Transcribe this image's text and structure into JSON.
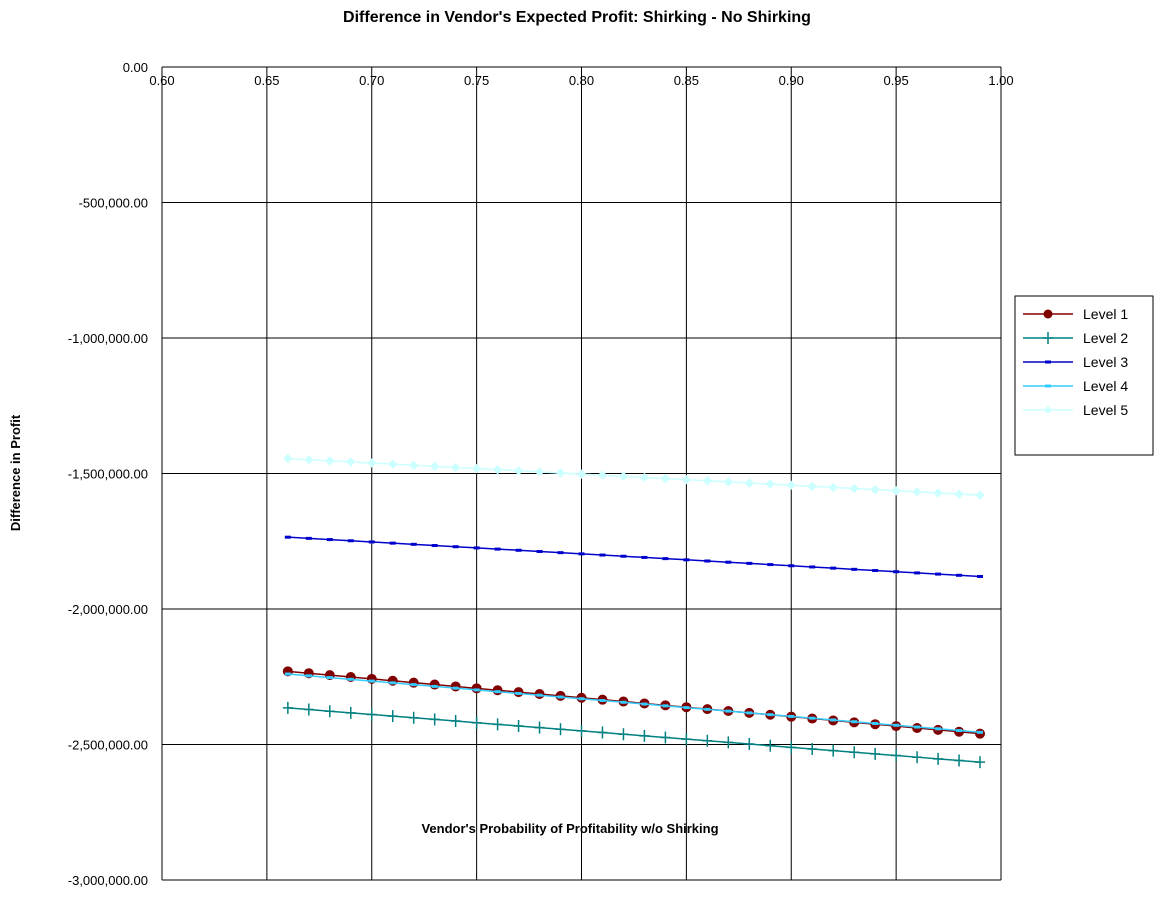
{
  "chart_data": {
    "type": "line",
    "title": "Difference in Vendor's Expected Profit:  Shirking - No Shirking",
    "xlabel": "Vendor's Probability of Profitability w/o Shirking",
    "ylabel": "Difference in Profit",
    "xlim": [
      0.6,
      1.0
    ],
    "ylim": [
      -3000000,
      0
    ],
    "x_tick_labels": [
      "0.60",
      "0.65",
      "0.70",
      "0.75",
      "0.80",
      "0.85",
      "0.90",
      "0.95",
      "1.00"
    ],
    "y_tick_labels": [
      "0.00",
      "-500,000.00",
      "-1,000,000.00",
      "-1,500,000.00",
      "-2,000,000.00",
      "-2,500,000.00",
      "-3,000,000.00"
    ],
    "x_ticks": [
      0.6,
      0.65,
      0.7,
      0.75,
      0.8,
      0.85,
      0.9,
      0.95,
      1.0
    ],
    "y_ticks": [
      0,
      -500000,
      -1000000,
      -1500000,
      -2000000,
      -2500000,
      -3000000
    ],
    "grid": "vertical and horizontal",
    "legend_position": "right",
    "x_start": 0.66,
    "x_end": 0.99,
    "x_step": 0.01,
    "series": [
      {
        "name": "Level 1",
        "color": "#800000",
        "marker": "circle",
        "y_start": -2230000,
        "y_end": -2460000
      },
      {
        "name": "Level 2",
        "color": "#008080",
        "marker": "plus",
        "y_start": -2365000,
        "y_end": -2565000
      },
      {
        "name": "Level 3",
        "color": "#0000cc",
        "marker": "dash",
        "y_start": -1735000,
        "y_end": -1880000
      },
      {
        "name": "Level 4",
        "color": "#33ccff",
        "marker": "dash",
        "y_start": -2240000,
        "y_end": -2455000
      },
      {
        "name": "Level 5",
        "color": "#ccffff",
        "marker": "diamond",
        "y_start": -1445000,
        "y_end": -1580000
      }
    ]
  }
}
